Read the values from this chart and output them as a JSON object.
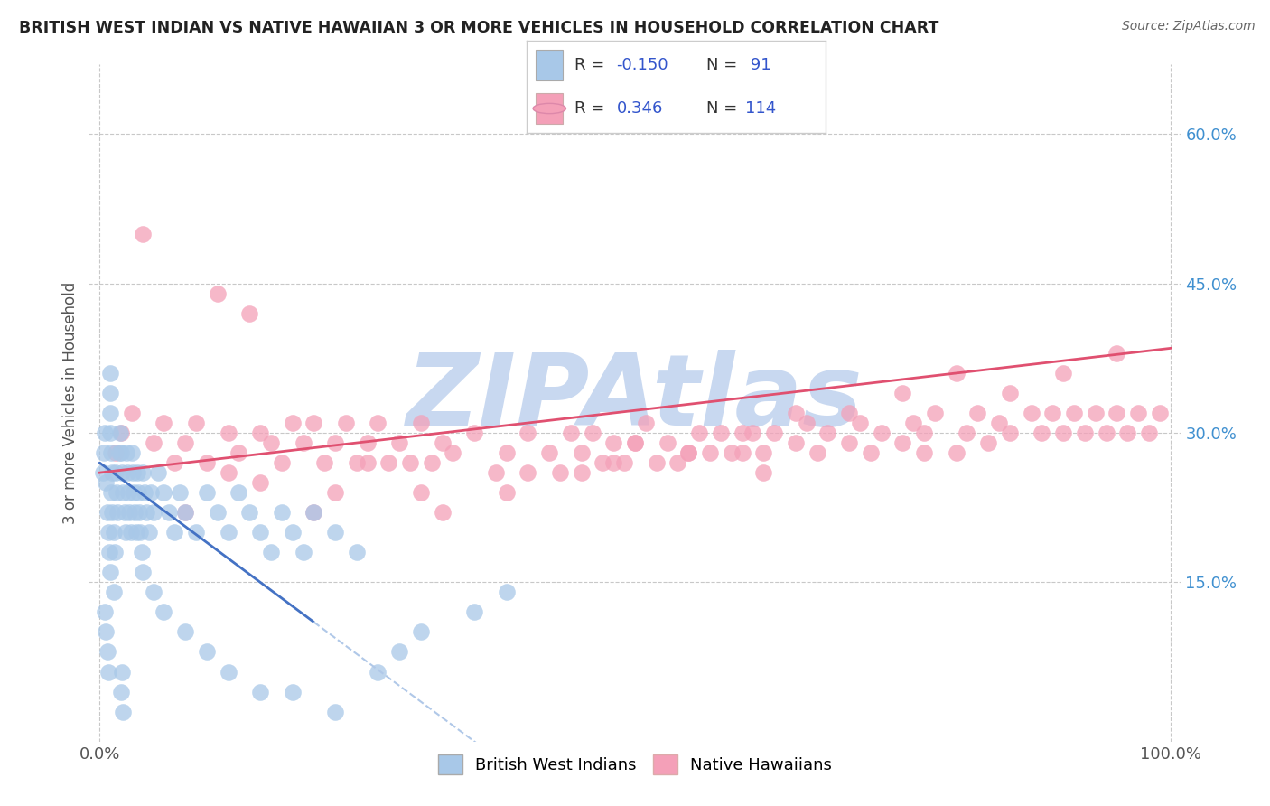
{
  "title": "BRITISH WEST INDIAN VS NATIVE HAWAIIAN 3 OR MORE VEHICLES IN HOUSEHOLD CORRELATION CHART",
  "source": "Source: ZipAtlas.com",
  "ylabel": "3 or more Vehicles in Household",
  "y_ticks_right": [
    0.15,
    0.3,
    0.45,
    0.6
  ],
  "y_tick_labels_right": [
    "15.0%",
    "30.0%",
    "45.0%",
    "60.0%"
  ],
  "xlim": [
    -1,
    101
  ],
  "ylim": [
    -0.01,
    0.67
  ],
  "legend_r1_val": "-0.150",
  "legend_n1_val": "91",
  "legend_r2_val": "0.346",
  "legend_n2_val": "114",
  "series1_color": "#a8c8e8",
  "series2_color": "#f4a0b8",
  "trend1_color": "#4472c4",
  "trend2_color": "#e05070",
  "trend1_dash_color": "#b0c8e8",
  "watermark": "ZIPAtlas",
  "watermark_color": "#c8d8f0",
  "background_color": "#ffffff",
  "grid_color": "#c8c8c8",
  "series1_label": "British West Indians",
  "series2_label": "Native Hawaiians",
  "blue_x": [
    0.3,
    0.4,
    0.5,
    0.6,
    0.7,
    0.8,
    0.9,
    1.0,
    1.1,
    1.2,
    1.3,
    1.4,
    1.5,
    1.6,
    1.7,
    1.8,
    1.9,
    2.0,
    2.1,
    2.2,
    2.3,
    2.4,
    2.5,
    2.6,
    2.7,
    2.8,
    2.9,
    3.0,
    3.1,
    3.2,
    3.3,
    3.4,
    3.5,
    3.6,
    3.7,
    3.8,
    3.9,
    4.0,
    4.2,
    4.4,
    4.6,
    4.8,
    5.0,
    5.5,
    6.0,
    6.5,
    7.0,
    7.5,
    8.0,
    9.0,
    10.0,
    11.0,
    12.0,
    13.0,
    14.0,
    15.0,
    16.0,
    17.0,
    18.0,
    19.0,
    20.0,
    22.0,
    24.0,
    1.0,
    1.0,
    1.0,
    1.0,
    1.1,
    1.2,
    1.3,
    0.5,
    0.6,
    0.7,
    0.8,
    2.0,
    2.1,
    2.2,
    4.0,
    5.0,
    6.0,
    8.0,
    10.0,
    12.0,
    15.0,
    18.0,
    22.0,
    26.0,
    28.0,
    30.0,
    35.0,
    38.0
  ],
  "blue_y": [
    0.26,
    0.28,
    0.3,
    0.25,
    0.22,
    0.2,
    0.18,
    0.16,
    0.24,
    0.22,
    0.2,
    0.18,
    0.26,
    0.24,
    0.22,
    0.28,
    0.3,
    0.28,
    0.26,
    0.24,
    0.22,
    0.2,
    0.28,
    0.26,
    0.24,
    0.22,
    0.2,
    0.28,
    0.26,
    0.24,
    0.22,
    0.2,
    0.26,
    0.24,
    0.22,
    0.2,
    0.18,
    0.26,
    0.24,
    0.22,
    0.2,
    0.24,
    0.22,
    0.26,
    0.24,
    0.22,
    0.2,
    0.24,
    0.22,
    0.2,
    0.24,
    0.22,
    0.2,
    0.24,
    0.22,
    0.2,
    0.18,
    0.22,
    0.2,
    0.18,
    0.22,
    0.2,
    0.18,
    0.34,
    0.36,
    0.32,
    0.3,
    0.28,
    0.26,
    0.14,
    0.12,
    0.1,
    0.08,
    0.06,
    0.04,
    0.06,
    0.02,
    0.16,
    0.14,
    0.12,
    0.1,
    0.08,
    0.06,
    0.04,
    0.04,
    0.02,
    0.06,
    0.08,
    0.1,
    0.12,
    0.14
  ],
  "pink_x": [
    1.5,
    2.0,
    3.0,
    4.0,
    5.0,
    6.0,
    7.0,
    8.0,
    9.0,
    10.0,
    11.0,
    12.0,
    13.0,
    14.0,
    15.0,
    16.0,
    17.0,
    18.0,
    19.0,
    20.0,
    21.0,
    22.0,
    23.0,
    24.0,
    25.0,
    26.0,
    27.0,
    28.0,
    29.0,
    30.0,
    31.0,
    32.0,
    33.0,
    35.0,
    37.0,
    38.0,
    40.0,
    42.0,
    43.0,
    44.0,
    45.0,
    46.0,
    47.0,
    48.0,
    49.0,
    50.0,
    51.0,
    52.0,
    53.0,
    54.0,
    55.0,
    56.0,
    57.0,
    58.0,
    59.0,
    60.0,
    61.0,
    62.0,
    63.0,
    65.0,
    66.0,
    67.0,
    68.0,
    70.0,
    71.0,
    72.0,
    73.0,
    75.0,
    76.0,
    77.0,
    78.0,
    80.0,
    81.0,
    82.0,
    83.0,
    84.0,
    85.0,
    87.0,
    88.0,
    89.0,
    90.0,
    91.0,
    92.0,
    93.0,
    94.0,
    95.0,
    96.0,
    97.0,
    98.0,
    99.0,
    32.0,
    15.0,
    22.0,
    8.0,
    45.0,
    60.0,
    38.0,
    70.0,
    85.0,
    50.0,
    30.0,
    20.0,
    75.0,
    90.0,
    55.0,
    65.0,
    80.0,
    95.0,
    40.0,
    25.0,
    12.0,
    48.0,
    62.0,
    77.0
  ],
  "pink_y": [
    0.28,
    0.3,
    0.32,
    0.5,
    0.29,
    0.31,
    0.27,
    0.29,
    0.31,
    0.27,
    0.44,
    0.3,
    0.28,
    0.42,
    0.3,
    0.29,
    0.27,
    0.31,
    0.29,
    0.31,
    0.27,
    0.29,
    0.31,
    0.27,
    0.29,
    0.31,
    0.27,
    0.29,
    0.27,
    0.31,
    0.27,
    0.29,
    0.28,
    0.3,
    0.26,
    0.28,
    0.3,
    0.28,
    0.26,
    0.3,
    0.28,
    0.3,
    0.27,
    0.29,
    0.27,
    0.29,
    0.31,
    0.27,
    0.29,
    0.27,
    0.28,
    0.3,
    0.28,
    0.3,
    0.28,
    0.28,
    0.3,
    0.28,
    0.3,
    0.29,
    0.31,
    0.28,
    0.3,
    0.29,
    0.31,
    0.28,
    0.3,
    0.29,
    0.31,
    0.28,
    0.32,
    0.28,
    0.3,
    0.32,
    0.29,
    0.31,
    0.3,
    0.32,
    0.3,
    0.32,
    0.3,
    0.32,
    0.3,
    0.32,
    0.3,
    0.32,
    0.3,
    0.32,
    0.3,
    0.32,
    0.22,
    0.25,
    0.24,
    0.22,
    0.26,
    0.3,
    0.24,
    0.32,
    0.34,
    0.29,
    0.24,
    0.22,
    0.34,
    0.36,
    0.28,
    0.32,
    0.36,
    0.38,
    0.26,
    0.27,
    0.26,
    0.27,
    0.26,
    0.3
  ]
}
